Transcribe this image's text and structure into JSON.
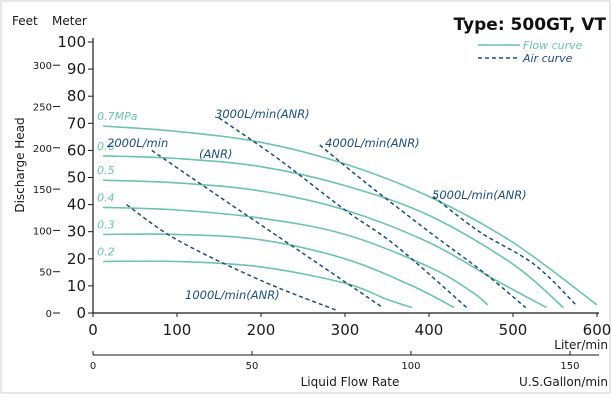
{
  "chart_data": {
    "type": "line",
    "title": "Type: 500GT, VT",
    "ylabel": "Discharge Head",
    "y_unit_meter": "Meter",
    "y_unit_feet": "Feet",
    "xlabel": "Liquid Flow Rate",
    "x_unit_liter": "Liter/min",
    "x_unit_usgal": "U.S.Gallon/min",
    "xlim": [
      0,
      600
    ],
    "ylim": [
      0,
      100
    ],
    "x_ticks": [
      0,
      100,
      200,
      300,
      400,
      500,
      600
    ],
    "y_ticks": [
      0,
      10,
      20,
      30,
      40,
      50,
      60,
      70,
      80,
      90,
      100
    ],
    "feet_ticks": [
      0,
      50,
      100,
      150,
      200,
      250,
      300
    ],
    "usgal_ticks": [
      0,
      50,
      100,
      150
    ],
    "legend": {
      "flow": "Flow curve",
      "air": "Air curve",
      "position": "top-right"
    },
    "flow_curves": [
      {
        "label": "0.7MPa",
        "points": [
          [
            12,
            69
          ],
          [
            100,
            67
          ],
          [
            200,
            63
          ],
          [
            300,
            55
          ],
          [
            400,
            43
          ],
          [
            500,
            26
          ],
          [
            600,
            3
          ]
        ]
      },
      {
        "label": "0.6",
        "points": [
          [
            12,
            58
          ],
          [
            100,
            57
          ],
          [
            200,
            54
          ],
          [
            300,
            47
          ],
          [
            400,
            36
          ],
          [
            500,
            18
          ],
          [
            560,
            2
          ]
        ]
      },
      {
        "label": "0.5",
        "points": [
          [
            12,
            49
          ],
          [
            100,
            48
          ],
          [
            200,
            45
          ],
          [
            300,
            38
          ],
          [
            400,
            26
          ],
          [
            480,
            12
          ],
          [
            540,
            2
          ]
        ]
      },
      {
        "label": "0.4",
        "points": [
          [
            12,
            39
          ],
          [
            100,
            38
          ],
          [
            200,
            35
          ],
          [
            300,
            29
          ],
          [
            400,
            17
          ],
          [
            450,
            8
          ],
          [
            470,
            3
          ]
        ]
      },
      {
        "label": "0.3",
        "points": [
          [
            12,
            29
          ],
          [
            100,
            29
          ],
          [
            200,
            27
          ],
          [
            300,
            20
          ],
          [
            380,
            10
          ],
          [
            430,
            2
          ]
        ]
      },
      {
        "label": "0.2",
        "points": [
          [
            12,
            19
          ],
          [
            100,
            19
          ],
          [
            200,
            17
          ],
          [
            300,
            11
          ],
          [
            350,
            5
          ],
          [
            380,
            2
          ]
        ]
      }
    ],
    "air_curves": [
      {
        "label": "1000L/min(ANR)",
        "points": [
          [
            40,
            40
          ],
          [
            100,
            27
          ],
          [
            200,
            12
          ],
          [
            290,
            1
          ]
        ]
      },
      {
        "label": "2000L/min",
        "label2": "(ANR)",
        "points": [
          [
            70,
            60
          ],
          [
            150,
            43
          ],
          [
            250,
            22
          ],
          [
            345,
            2
          ]
        ]
      },
      {
        "label": "3000L/min(ANR)",
        "points": [
          [
            150,
            72
          ],
          [
            220,
            57
          ],
          [
            300,
            38
          ],
          [
            360,
            25
          ],
          [
            445,
            2
          ]
        ]
      },
      {
        "label": "4000L/min(ANR)",
        "points": [
          [
            270,
            62
          ],
          [
            325,
            48
          ],
          [
            400,
            30
          ],
          [
            465,
            15
          ],
          [
            515,
            2
          ]
        ]
      },
      {
        "label": "5000L/min(ANR)",
        "points": [
          [
            405,
            43
          ],
          [
            460,
            30
          ],
          [
            525,
            18
          ],
          [
            575,
            3
          ]
        ]
      }
    ]
  }
}
